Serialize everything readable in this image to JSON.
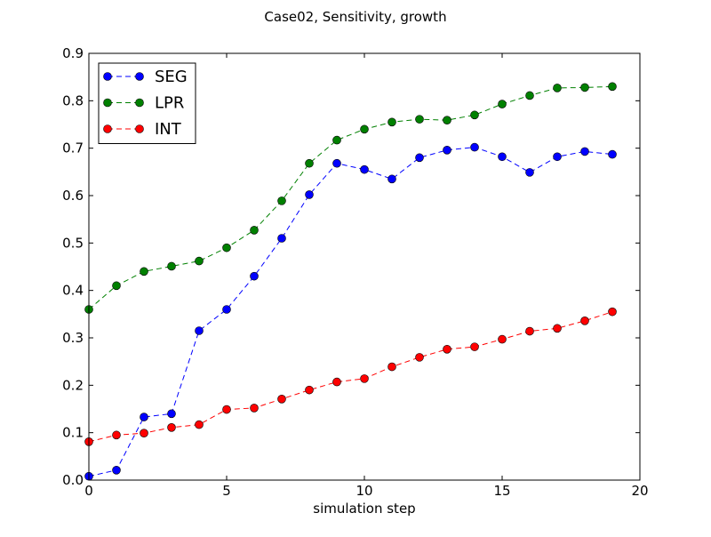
{
  "chart_data": {
    "type": "line",
    "title": "Case02, Sensitivity, growth",
    "xlabel": "simulation step",
    "ylabel": "",
    "xlim": [
      0,
      20
    ],
    "ylim": [
      0.0,
      0.9
    ],
    "xticks": [
      "0",
      "5",
      "10",
      "15",
      "20"
    ],
    "yticks": [
      "0.0",
      "0.1",
      "0.2",
      "0.3",
      "0.4",
      "0.5",
      "0.6",
      "0.7",
      "0.8",
      "0.9"
    ],
    "legend_position": "top-left",
    "x": [
      0,
      1,
      2,
      3,
      4,
      5,
      6,
      7,
      8,
      9,
      10,
      11,
      12,
      13,
      14,
      15,
      16,
      17,
      18,
      19
    ],
    "series": [
      {
        "name": "SEG",
        "color": "#0000ff",
        "values": [
          0.008,
          0.021,
          0.133,
          0.14,
          0.315,
          0.36,
          0.43,
          0.51,
          0.602,
          0.668,
          0.655,
          0.635,
          0.68,
          0.696,
          0.702,
          0.682,
          0.649,
          0.682,
          0.693,
          0.687
        ]
      },
      {
        "name": "LPR",
        "color": "#008000",
        "values": [
          0.36,
          0.41,
          0.44,
          0.451,
          0.462,
          0.49,
          0.527,
          0.589,
          0.668,
          0.717,
          0.74,
          0.755,
          0.761,
          0.759,
          0.77,
          0.793,
          0.811,
          0.827,
          0.828,
          0.83
        ]
      },
      {
        "name": "INT",
        "color": "#ff0000",
        "values": [
          0.081,
          0.095,
          0.099,
          0.111,
          0.117,
          0.149,
          0.152,
          0.171,
          0.19,
          0.207,
          0.214,
          0.239,
          0.259,
          0.276,
          0.281,
          0.297,
          0.314,
          0.32,
          0.336,
          0.355
        ]
      }
    ]
  }
}
